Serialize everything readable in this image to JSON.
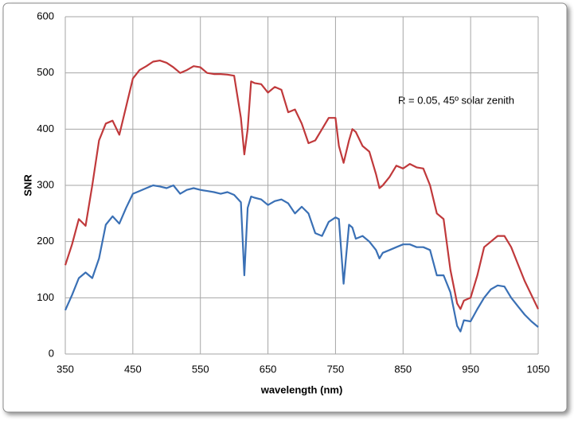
{
  "chart_data": {
    "type": "line",
    "y_label": "SNR",
    "x_label": "wavelength (nm)",
    "annotation": "R = 0.05, 45º solar zenith",
    "x": [
      350,
      360,
      370,
      380,
      390,
      400,
      410,
      420,
      430,
      440,
      450,
      460,
      470,
      480,
      490,
      500,
      510,
      520,
      530,
      540,
      550,
      560,
      570,
      580,
      590,
      600,
      610,
      615,
      620,
      625,
      630,
      640,
      650,
      660,
      670,
      680,
      690,
      700,
      710,
      720,
      730,
      740,
      750,
      755,
      762,
      770,
      775,
      780,
      790,
      800,
      810,
      815,
      820,
      830,
      840,
      850,
      860,
      870,
      880,
      890,
      900,
      910,
      920,
      930,
      935,
      940,
      950,
      960,
      970,
      980,
      990,
      1000,
      1010,
      1020,
      1030,
      1040,
      1050
    ],
    "series": [
      {
        "color": "#c0393b",
        "values": [
          158,
          195,
          240,
          228,
          300,
          380,
          410,
          415,
          390,
          440,
          490,
          505,
          512,
          520,
          522,
          518,
          510,
          500,
          505,
          512,
          510,
          500,
          498,
          498,
          497,
          495,
          420,
          355,
          400,
          485,
          482,
          480,
          465,
          475,
          470,
          430,
          435,
          410,
          375,
          380,
          400,
          420,
          420,
          370,
          340,
          380,
          400,
          395,
          370,
          360,
          320,
          295,
          300,
          315,
          335,
          330,
          338,
          332,
          330,
          300,
          250,
          240,
          150,
          90,
          80,
          95,
          100,
          140,
          190,
          200,
          210,
          210,
          190,
          160,
          130,
          105,
          80
        ]
      },
      {
        "color": "#3a70b5",
        "values": [
          78,
          105,
          135,
          145,
          135,
          170,
          230,
          245,
          232,
          260,
          285,
          290,
          295,
          300,
          298,
          295,
          300,
          285,
          292,
          295,
          292,
          290,
          288,
          285,
          288,
          283,
          270,
          140,
          260,
          280,
          278,
          275,
          265,
          272,
          275,
          268,
          250,
          262,
          250,
          215,
          210,
          235,
          243,
          240,
          125,
          230,
          225,
          205,
          210,
          200,
          185,
          170,
          180,
          185,
          190,
          195,
          195,
          190,
          190,
          185,
          140,
          140,
          110,
          50,
          40,
          60,
          58,
          80,
          100,
          115,
          122,
          120,
          100,
          85,
          70,
          58,
          48
        ]
      }
    ],
    "xlim": [
      350,
      1050
    ],
    "xticks": [
      350,
      450,
      550,
      650,
      750,
      850,
      950,
      1050
    ],
    "ylim": [
      0,
      600
    ],
    "yticks": [
      0,
      100,
      200,
      300,
      400,
      500,
      600
    ],
    "grid": true
  }
}
